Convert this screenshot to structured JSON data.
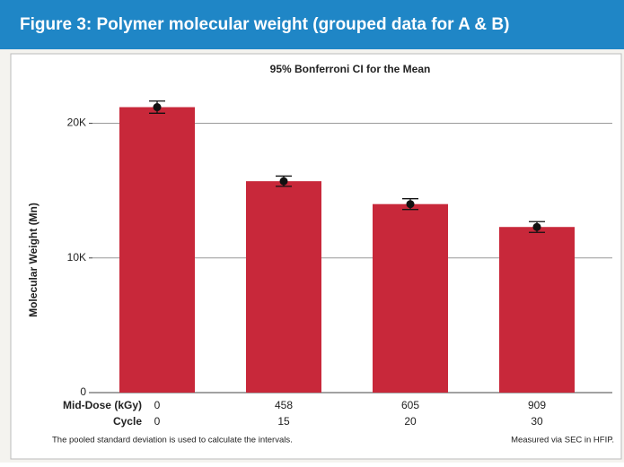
{
  "chart_data": {
    "type": "bar",
    "title": "Figure 3: Polymer molecular weight (grouped data for A & B)",
    "subtitle": "95% Bonferroni CI for the Mean",
    "y_label": "Molecular Weight (Mn)",
    "categories": [
      "0",
      "458",
      "605",
      "909"
    ],
    "x_rows": [
      {
        "name": "Mid-Dose (kGy)",
        "labels": [
          "0",
          "458",
          "605",
          "909"
        ]
      },
      {
        "name": "Cycle",
        "labels": [
          "0",
          "15",
          "20",
          "30"
        ]
      }
    ],
    "values": [
      21200,
      15700,
      14000,
      12300
    ],
    "errors": [
      450,
      380,
      400,
      400
    ],
    "color": "#c8283a",
    "point_color": "#111111",
    "ylim": [
      0,
      22500
    ],
    "yticks": [
      0,
      {
        "value": 10000,
        "label": "10K"
      },
      {
        "value": 20000,
        "label": "20K"
      }
    ],
    "grid": true,
    "footnote_left": "The pooled standard deviation is used to calculate the intervals.",
    "footnote_right": "Measured via SEC in HFIP."
  }
}
